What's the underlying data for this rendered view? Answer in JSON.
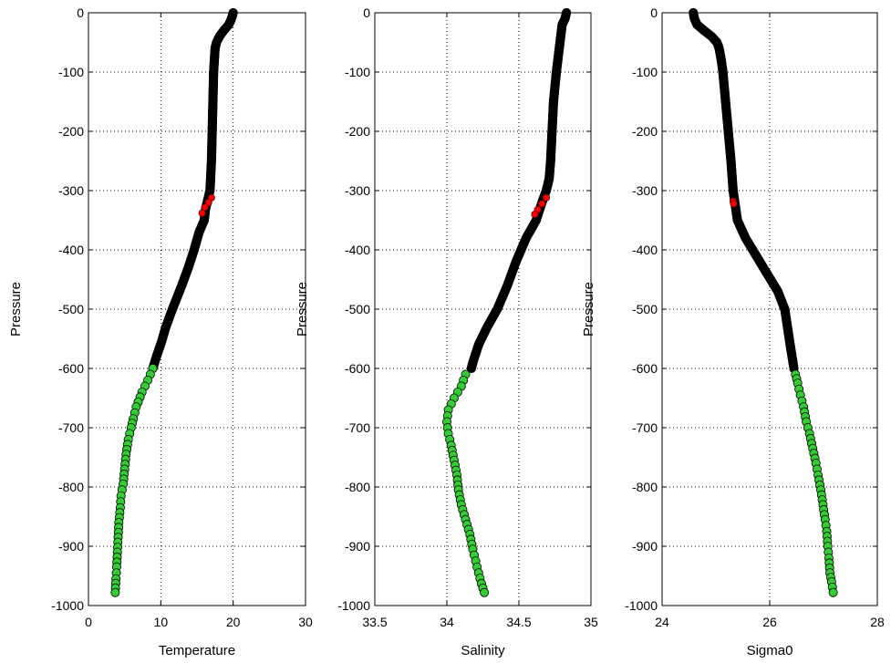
{
  "chart_data": [
    {
      "type": "scatter",
      "xlabel": "Temperature",
      "ylabel": "Pressure",
      "xlim": [
        0,
        30
      ],
      "ylim": [
        -1000,
        0
      ],
      "xticks": [
        0,
        10,
        20,
        30
      ],
      "yticks": [
        -1000,
        -900,
        -800,
        -700,
        -600,
        -500,
        -400,
        -300,
        -200,
        -100,
        0
      ],
      "grid": true,
      "colors": {
        "main": "#000000",
        "flagged": "#ff0000",
        "deep": "#33cc33"
      },
      "profile": [
        [
          20.0,
          0
        ],
        [
          19.9,
          -5
        ],
        [
          19.7,
          -12
        ],
        [
          19.4,
          -20
        ],
        [
          18.7,
          -30
        ],
        [
          18.1,
          -40
        ],
        [
          17.7,
          -50
        ],
        [
          17.5,
          -60
        ],
        [
          17.4,
          -80
        ],
        [
          17.3,
          -100
        ],
        [
          17.2,
          -150
        ],
        [
          17.1,
          -200
        ],
        [
          17.0,
          -250
        ],
        [
          16.8,
          -300
        ],
        [
          16.2,
          -330
        ],
        [
          16.0,
          -350
        ],
        [
          15.3,
          -370
        ],
        [
          14.6,
          -400
        ],
        [
          13.8,
          -430
        ],
        [
          12.9,
          -460
        ],
        [
          11.6,
          -500
        ],
        [
          10.7,
          -530
        ],
        [
          10.1,
          -555
        ],
        [
          9.4,
          -580
        ],
        [
          8.9,
          -600
        ]
      ],
      "flagged": [
        [
          17.0,
          -312
        ],
        [
          16.6,
          -320
        ],
        [
          15.7,
          -338
        ],
        [
          16.1,
          -328
        ]
      ],
      "deep": [
        [
          8.9,
          -600
        ],
        [
          8.2,
          -620
        ],
        [
          7.4,
          -640
        ],
        [
          6.6,
          -665
        ],
        [
          6.2,
          -685
        ],
        [
          5.9,
          -700
        ],
        [
          5.5,
          -720
        ],
        [
          5.2,
          -745
        ],
        [
          5.0,
          -770
        ],
        [
          4.8,
          -795
        ],
        [
          4.5,
          -815
        ],
        [
          4.4,
          -835
        ],
        [
          4.2,
          -860
        ],
        [
          4.1,
          -885
        ],
        [
          4.0,
          -910
        ],
        [
          3.9,
          -935
        ],
        [
          3.8,
          -955
        ],
        [
          3.7,
          -978
        ]
      ]
    },
    {
      "type": "scatter",
      "xlabel": "Salinity",
      "ylabel": "Pressure",
      "xlim": [
        33.5,
        35
      ],
      "ylim": [
        -1000,
        0
      ],
      "xticks": [
        33.5,
        34,
        34.5,
        35
      ],
      "yticks": [
        -1000,
        -900,
        -800,
        -700,
        -600,
        -500,
        -400,
        -300,
        -200,
        -100,
        0
      ],
      "grid": true,
      "profile": [
        [
          34.83,
          0
        ],
        [
          34.82,
          -10
        ],
        [
          34.8,
          -20
        ],
        [
          34.79,
          -40
        ],
        [
          34.78,
          -60
        ],
        [
          34.77,
          -80
        ],
        [
          34.76,
          -100
        ],
        [
          34.74,
          -150
        ],
        [
          34.73,
          -200
        ],
        [
          34.72,
          -250
        ],
        [
          34.71,
          -280
        ],
        [
          34.69,
          -300
        ],
        [
          34.66,
          -320
        ],
        [
          34.62,
          -350
        ],
        [
          34.55,
          -380
        ],
        [
          34.48,
          -420
        ],
        [
          34.42,
          -460
        ],
        [
          34.35,
          -500
        ],
        [
          34.28,
          -530
        ],
        [
          34.22,
          -560
        ],
        [
          34.18,
          -590
        ],
        [
          34.17,
          -600
        ]
      ],
      "flagged": [
        [
          34.69,
          -312
        ],
        [
          34.66,
          -322
        ],
        [
          34.63,
          -332
        ],
        [
          34.61,
          -340
        ]
      ],
      "deep": [
        [
          34.13,
          -610
        ],
        [
          34.1,
          -630
        ],
        [
          34.05,
          -650
        ],
        [
          34.01,
          -670
        ],
        [
          34.0,
          -690
        ],
        [
          34.01,
          -710
        ],
        [
          34.03,
          -730
        ],
        [
          34.05,
          -755
        ],
        [
          34.07,
          -780
        ],
        [
          34.08,
          -805
        ],
        [
          34.1,
          -830
        ],
        [
          34.13,
          -855
        ],
        [
          34.16,
          -880
        ],
        [
          34.18,
          -905
        ],
        [
          34.2,
          -925
        ],
        [
          34.22,
          -945
        ],
        [
          34.24,
          -963
        ],
        [
          34.26,
          -978
        ]
      ]
    },
    {
      "type": "scatter",
      "xlabel": "Sigma0",
      "ylabel": "Pressure",
      "xlim": [
        24,
        28
      ],
      "ylim": [
        -1000,
        0
      ],
      "xticks": [
        24,
        26,
        28
      ],
      "yticks": [
        -1000,
        -900,
        -800,
        -700,
        -600,
        -500,
        -400,
        -300,
        -200,
        -100,
        0
      ],
      "grid": true,
      "profile": [
        [
          24.58,
          0
        ],
        [
          24.6,
          -10
        ],
        [
          24.65,
          -20
        ],
        [
          24.78,
          -30
        ],
        [
          24.92,
          -40
        ],
        [
          25.02,
          -50
        ],
        [
          25.06,
          -60
        ],
        [
          25.1,
          -80
        ],
        [
          25.13,
          -100
        ],
        [
          25.18,
          -150
        ],
        [
          25.23,
          -200
        ],
        [
          25.28,
          -250
        ],
        [
          25.32,
          -300
        ],
        [
          25.4,
          -350
        ],
        [
          25.55,
          -380
        ],
        [
          25.75,
          -410
        ],
        [
          25.95,
          -440
        ],
        [
          26.15,
          -470
        ],
        [
          26.28,
          -500
        ],
        [
          26.33,
          -530
        ],
        [
          26.38,
          -560
        ],
        [
          26.45,
          -600
        ]
      ],
      "flagged": [
        [
          25.32,
          -318
        ],
        [
          25.33,
          -322
        ]
      ],
      "deep": [
        [
          26.48,
          -610
        ],
        [
          26.52,
          -625
        ],
        [
          26.57,
          -645
        ],
        [
          26.63,
          -665
        ],
        [
          26.68,
          -690
        ],
        [
          26.74,
          -710
        ],
        [
          26.8,
          -735
        ],
        [
          26.86,
          -760
        ],
        [
          26.9,
          -780
        ],
        [
          26.95,
          -805
        ],
        [
          26.99,
          -830
        ],
        [
          27.03,
          -855
        ],
        [
          27.06,
          -875
        ],
        [
          27.08,
          -900
        ],
        [
          27.1,
          -920
        ],
        [
          27.12,
          -945
        ],
        [
          27.15,
          -960
        ],
        [
          27.18,
          -978
        ]
      ]
    }
  ]
}
